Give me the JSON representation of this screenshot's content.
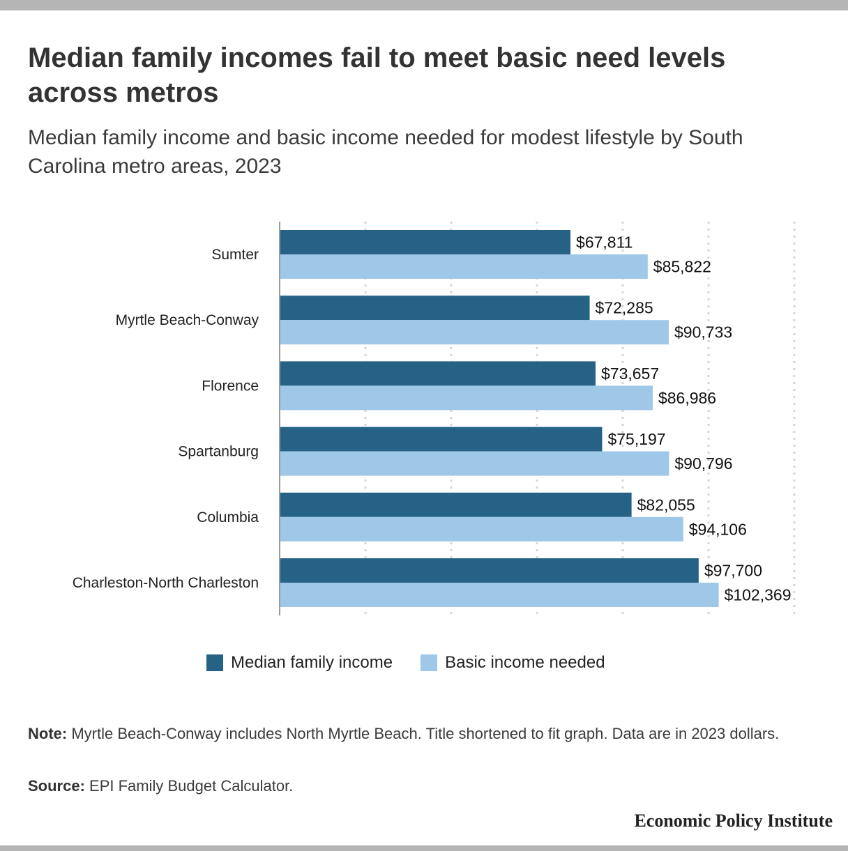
{
  "title": "Median family incomes fail to meet basic need levels across metros",
  "subtitle": "Median family income and basic income needed for modest lifestyle by South Carolina metro areas, 2023",
  "legend": [
    {
      "label": "Median family income",
      "color": "#256285"
    },
    {
      "label": "Basic income needed",
      "color": "#9fc7e8"
    }
  ],
  "chart_data": {
    "type": "bar",
    "orientation": "horizontal",
    "categories": [
      "Sumter",
      "Myrtle Beach-Conway",
      "Florence",
      "Spartanburg",
      "Columbia",
      "Charleston-North Charleston"
    ],
    "series": [
      {
        "name": "Median family income",
        "color": "#256285",
        "values": [
          67811,
          72285,
          73657,
          75197,
          82055,
          97700
        ]
      },
      {
        "name": "Basic income needed",
        "color": "#9fc7e8",
        "values": [
          85822,
          90733,
          86986,
          90796,
          94106,
          102369
        ]
      }
    ],
    "value_labels": [
      [
        "$67,811",
        "$72,285",
        "$73,657",
        "$75,197",
        "$82,055",
        "$97,700"
      ],
      [
        "$85,822",
        "$90,733",
        "$86,986",
        "$90,796",
        "$94,106",
        "$102,369"
      ]
    ],
    "xlim": [
      0,
      120000
    ],
    "gridline_step": 20000,
    "grid": true,
    "legend_position": "bottom"
  },
  "note": {
    "label": "Note:",
    "text": "Myrtle Beach-Conway includes North Myrtle Beach. Title shortened to fit graph. Data are in 2023 dollars."
  },
  "source": {
    "label": "Source:",
    "text": "EPI Family Budget Calculator."
  },
  "brand": "Economic Policy Institute"
}
